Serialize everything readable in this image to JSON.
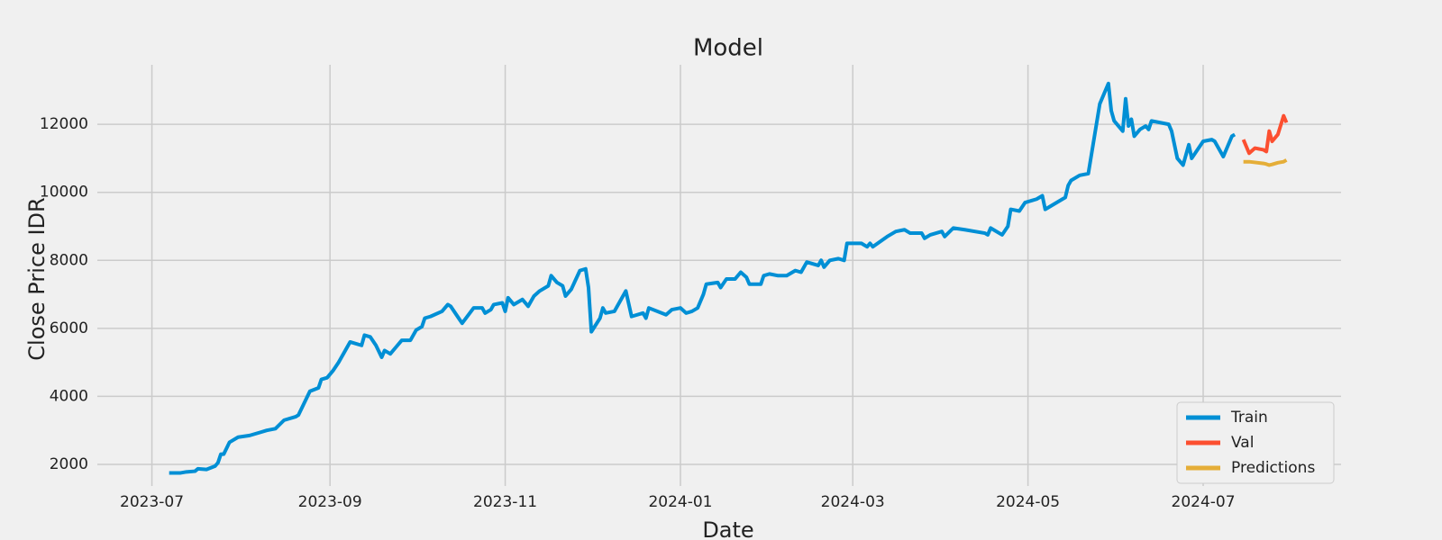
{
  "chart_data": {
    "type": "line",
    "title": "Model",
    "x_label": "Date",
    "y_label": "Close Price IDR",
    "xlim": [
      "2023-06-12",
      "2024-08-18"
    ],
    "ylim": [
      1365,
      13750
    ],
    "xticks": [
      {
        "value": "2023-07-01",
        "label": "2023-07"
      },
      {
        "value": "2023-09-01",
        "label": "2023-09"
      },
      {
        "value": "2023-11-01",
        "label": "2023-11"
      },
      {
        "value": "2024-01-01",
        "label": "2024-01"
      },
      {
        "value": "2024-03-01",
        "label": "2024-03"
      },
      {
        "value": "2024-05-01",
        "label": "2024-05"
      },
      {
        "value": "2024-07-01",
        "label": "2024-07"
      }
    ],
    "yticks": [
      2000,
      4000,
      6000,
      8000,
      10000,
      12000
    ],
    "grid": true,
    "legend": "lower right",
    "series": [
      {
        "name": "Train",
        "color": "#008fd5",
        "x": [
          "2023-07-07",
          "2023-07-11",
          "2023-07-13",
          "2023-07-16",
          "2023-07-17",
          "2023-07-20",
          "2023-07-23",
          "2023-07-24",
          "2023-07-25",
          "2023-07-26",
          "2023-07-28",
          "2023-07-31",
          "2023-08-04",
          "2023-08-08",
          "2023-08-10",
          "2023-08-13",
          "2023-08-16",
          "2023-08-20",
          "2023-08-21",
          "2023-08-23",
          "2023-08-25",
          "2023-08-28",
          "2023-08-29",
          "2023-08-31",
          "2023-09-02",
          "2023-09-04",
          "2023-09-08",
          "2023-09-12",
          "2023-09-13",
          "2023-09-15",
          "2023-09-17",
          "2023-09-19",
          "2023-09-20",
          "2023-09-22",
          "2023-09-24",
          "2023-09-26",
          "2023-09-29",
          "2023-10-01",
          "2023-10-03",
          "2023-10-04",
          "2023-10-06",
          "2023-10-10",
          "2023-10-12",
          "2023-10-13",
          "2023-10-17",
          "2023-10-21",
          "2023-10-24",
          "2023-10-25",
          "2023-10-27",
          "2023-10-28",
          "2023-10-31",
          "2023-11-01",
          "2023-11-02",
          "2023-11-04",
          "2023-11-07",
          "2023-11-09",
          "2023-11-11",
          "2023-11-13",
          "2023-11-16",
          "2023-11-17",
          "2023-11-19",
          "2023-11-21",
          "2023-11-22",
          "2023-11-24",
          "2023-11-27",
          "2023-11-29",
          "2023-11-30",
          "2023-12-01",
          "2023-12-04",
          "2023-12-05",
          "2023-12-06",
          "2023-12-09",
          "2023-12-13",
          "2023-12-15",
          "2023-12-19",
          "2023-12-20",
          "2023-12-21",
          "2023-12-27",
          "2023-12-29",
          "2024-01-01",
          "2024-01-03",
          "2024-01-05",
          "2024-01-07",
          "2024-01-09",
          "2024-01-10",
          "2024-01-14",
          "2024-01-15",
          "2024-01-17",
          "2024-01-20",
          "2024-01-22",
          "2024-01-24",
          "2024-01-25",
          "2024-01-29",
          "2024-01-30",
          "2024-02-01",
          "2024-02-04",
          "2024-02-07",
          "2024-02-10",
          "2024-02-12",
          "2024-02-14",
          "2024-02-18",
          "2024-02-19",
          "2024-02-20",
          "2024-02-22",
          "2024-02-25",
          "2024-02-27",
          "2024-02-28",
          "2024-03-04",
          "2024-03-06",
          "2024-03-07",
          "2024-03-08",
          "2024-03-13",
          "2024-03-16",
          "2024-03-19",
          "2024-03-21",
          "2024-03-25",
          "2024-03-26",
          "2024-03-28",
          "2024-04-01",
          "2024-04-02",
          "2024-04-05",
          "2024-04-09",
          "2024-04-16",
          "2024-04-17",
          "2024-04-18",
          "2024-04-22",
          "2024-04-24",
          "2024-04-25",
          "2024-04-28",
          "2024-04-30",
          "2024-05-04",
          "2024-05-06",
          "2024-05-07",
          "2024-05-13",
          "2024-05-14",
          "2024-05-15",
          "2024-05-16",
          "2024-05-19",
          "2024-05-22",
          "2024-05-26",
          "2024-05-29",
          "2024-05-30",
          "2024-05-31",
          "2024-06-03",
          "2024-06-04",
          "2024-06-05",
          "2024-06-06",
          "2024-06-07",
          "2024-06-09",
          "2024-06-11",
          "2024-06-12",
          "2024-06-13",
          "2024-06-19",
          "2024-06-20",
          "2024-06-22",
          "2024-06-24",
          "2024-06-26",
          "2024-06-27",
          "2024-07-01",
          "2024-07-04",
          "2024-07-05",
          "2024-07-08",
          "2024-07-11",
          "2024-07-12"
        ],
        "values": [
          1750,
          1750,
          1780,
          1800,
          1870,
          1850,
          1950,
          2050,
          2300,
          2300,
          2650,
          2800,
          2850,
          2950,
          3000,
          3050,
          3300,
          3400,
          3450,
          3800,
          4150,
          4250,
          4500,
          4550,
          4750,
          5000,
          5600,
          5500,
          5800,
          5750,
          5500,
          5150,
          5350,
          5250,
          5450,
          5650,
          5650,
          5950,
          6050,
          6300,
          6350,
          6500,
          6700,
          6650,
          6150,
          6600,
          6600,
          6450,
          6550,
          6700,
          6750,
          6500,
          6900,
          6700,
          6850,
          6650,
          6950,
          7100,
          7250,
          7550,
          7350,
          7250,
          6950,
          7150,
          7700,
          7750,
          7200,
          5900,
          6300,
          6600,
          6450,
          6500,
          7100,
          6350,
          6450,
          6300,
          6600,
          6400,
          6550,
          6600,
          6450,
          6500,
          6600,
          7000,
          7300,
          7350,
          7200,
          7450,
          7450,
          7650,
          7500,
          7300,
          7300,
          7550,
          7600,
          7550,
          7550,
          7700,
          7650,
          7950,
          7850,
          8000,
          7800,
          8000,
          8050,
          8000,
          8500,
          8500,
          8400,
          8500,
          8400,
          8700,
          8850,
          8900,
          8800,
          8800,
          8650,
          8750,
          8850,
          8700,
          8950,
          8900,
          8800,
          8750,
          8950,
          8750,
          9000,
          9500,
          9450,
          9700,
          9800,
          9900,
          9500,
          9800,
          9850,
          10200,
          10350,
          10500,
          10550,
          12600,
          13200,
          12400,
          12100,
          11800,
          12750,
          11950,
          12150,
          11650,
          11850,
          11950,
          11850,
          12100,
          12000,
          11800,
          11000,
          10800,
          11400,
          11000,
          11500,
          11550,
          11500,
          11050,
          11650,
          11700
        ]
      },
      {
        "name": "Val",
        "color": "#fc4f30",
        "x": [
          "2024-07-15",
          "2024-07-17",
          "2024-07-19",
          "2024-07-22",
          "2024-07-23",
          "2024-07-24",
          "2024-07-25",
          "2024-07-27",
          "2024-07-29",
          "2024-07-30"
        ],
        "values": [
          11550,
          11150,
          11300,
          11250,
          11200,
          11800,
          11500,
          11700,
          12250,
          12050
        ]
      },
      {
        "name": "Predictions",
        "color": "#e5ae38",
        "x": [
          "2024-07-15",
          "2024-07-17",
          "2024-07-19",
          "2024-07-22",
          "2024-07-23",
          "2024-07-24",
          "2024-07-25",
          "2024-07-27",
          "2024-07-29",
          "2024-07-30"
        ],
        "values": [
          10900,
          10900,
          10880,
          10850,
          10830,
          10800,
          10820,
          10870,
          10900,
          10950
        ]
      }
    ]
  }
}
